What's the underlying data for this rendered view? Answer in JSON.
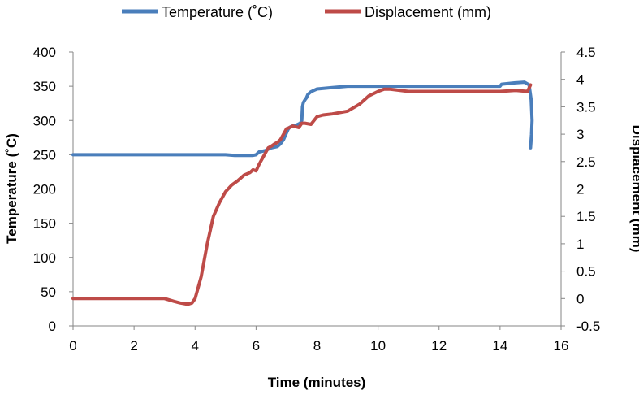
{
  "chart_data": {
    "type": "line",
    "title": "",
    "xlabel": "Time (minutes)",
    "ylabel": "Temperature (˚C)",
    "y2label": "Displacement (mm)",
    "xlim": [
      0,
      16
    ],
    "ylim": [
      0,
      400
    ],
    "y2lim": [
      -0.5,
      4.5
    ],
    "xticks": [
      "0",
      "2",
      "4",
      "6",
      "8",
      "10",
      "12",
      "14",
      "16"
    ],
    "yticks": [
      "0",
      "50",
      "100",
      "150",
      "200",
      "250",
      "300",
      "350",
      "400"
    ],
    "y2ticks": [
      "-0.5",
      "0",
      "0.5",
      "1",
      "1.5",
      "2",
      "2.5",
      "3",
      "3.5",
      "4",
      "4.5"
    ],
    "grid": false,
    "legend": "top",
    "series": [
      {
        "name": "Temperature (˚C)",
        "axis": "left",
        "color": "#4a7ebb",
        "x": [
          0,
          1,
          2,
          3,
          4,
          5,
          5.3,
          5.9,
          6.0,
          6.1,
          6.3,
          6.4,
          6.5,
          6.7,
          6.8,
          6.9,
          7.0,
          7.05,
          7.1,
          7.2,
          7.3,
          7.35,
          7.45,
          7.5,
          7.52,
          7.55,
          7.6,
          7.65,
          7.7,
          7.8,
          7.9,
          8.0,
          8.5,
          9.0,
          9.5,
          10,
          11,
          12,
          13,
          14,
          14.05,
          14.5,
          14.8,
          14.95,
          15.02,
          15.05,
          15.03,
          15.0
        ],
        "values": [
          250,
          250,
          250,
          250,
          250,
          250,
          249,
          249,
          250,
          254,
          256,
          258,
          260,
          262,
          266,
          272,
          282,
          287,
          290,
          292,
          293,
          294,
          296,
          300,
          320,
          326,
          330,
          333,
          338,
          342,
          344,
          346,
          348,
          350,
          350,
          350,
          350,
          350,
          350,
          350,
          353,
          355,
          356,
          352,
          330,
          300,
          280,
          260
        ]
      },
      {
        "name": "Displacement (mm)",
        "axis": "right",
        "color": "#be4b48",
        "x": [
          0,
          1,
          2,
          2.5,
          3.0,
          3.3,
          3.5,
          3.7,
          3.8,
          3.9,
          4.0,
          4.2,
          4.4,
          4.6,
          4.8,
          5.0,
          5.2,
          5.4,
          5.6,
          5.8,
          5.9,
          6.0,
          6.1,
          6.2,
          6.3,
          6.4,
          6.5,
          6.6,
          6.7,
          6.8,
          6.9,
          7.0,
          7.1,
          7.2,
          7.4,
          7.5,
          7.6,
          7.8,
          7.9,
          8.0,
          8.2,
          8.5,
          9.0,
          9.4,
          9.7,
          10.0,
          10.2,
          10.4,
          10.7,
          11.0,
          12,
          13,
          14,
          14.5,
          14.9,
          15.0
        ],
        "values": [
          0,
          0,
          0,
          0,
          0,
          -0.05,
          -0.08,
          -0.1,
          -0.1,
          -0.08,
          0,
          0.4,
          1.0,
          1.5,
          1.75,
          1.95,
          2.07,
          2.15,
          2.25,
          2.3,
          2.35,
          2.33,
          2.45,
          2.55,
          2.65,
          2.75,
          2.78,
          2.82,
          2.85,
          2.9,
          3.0,
          3.1,
          3.12,
          3.15,
          3.12,
          3.2,
          3.2,
          3.18,
          3.25,
          3.32,
          3.35,
          3.37,
          3.42,
          3.55,
          3.7,
          3.78,
          3.82,
          3.82,
          3.8,
          3.78,
          3.78,
          3.78,
          3.78,
          3.8,
          3.78,
          3.9
        ]
      }
    ]
  }
}
